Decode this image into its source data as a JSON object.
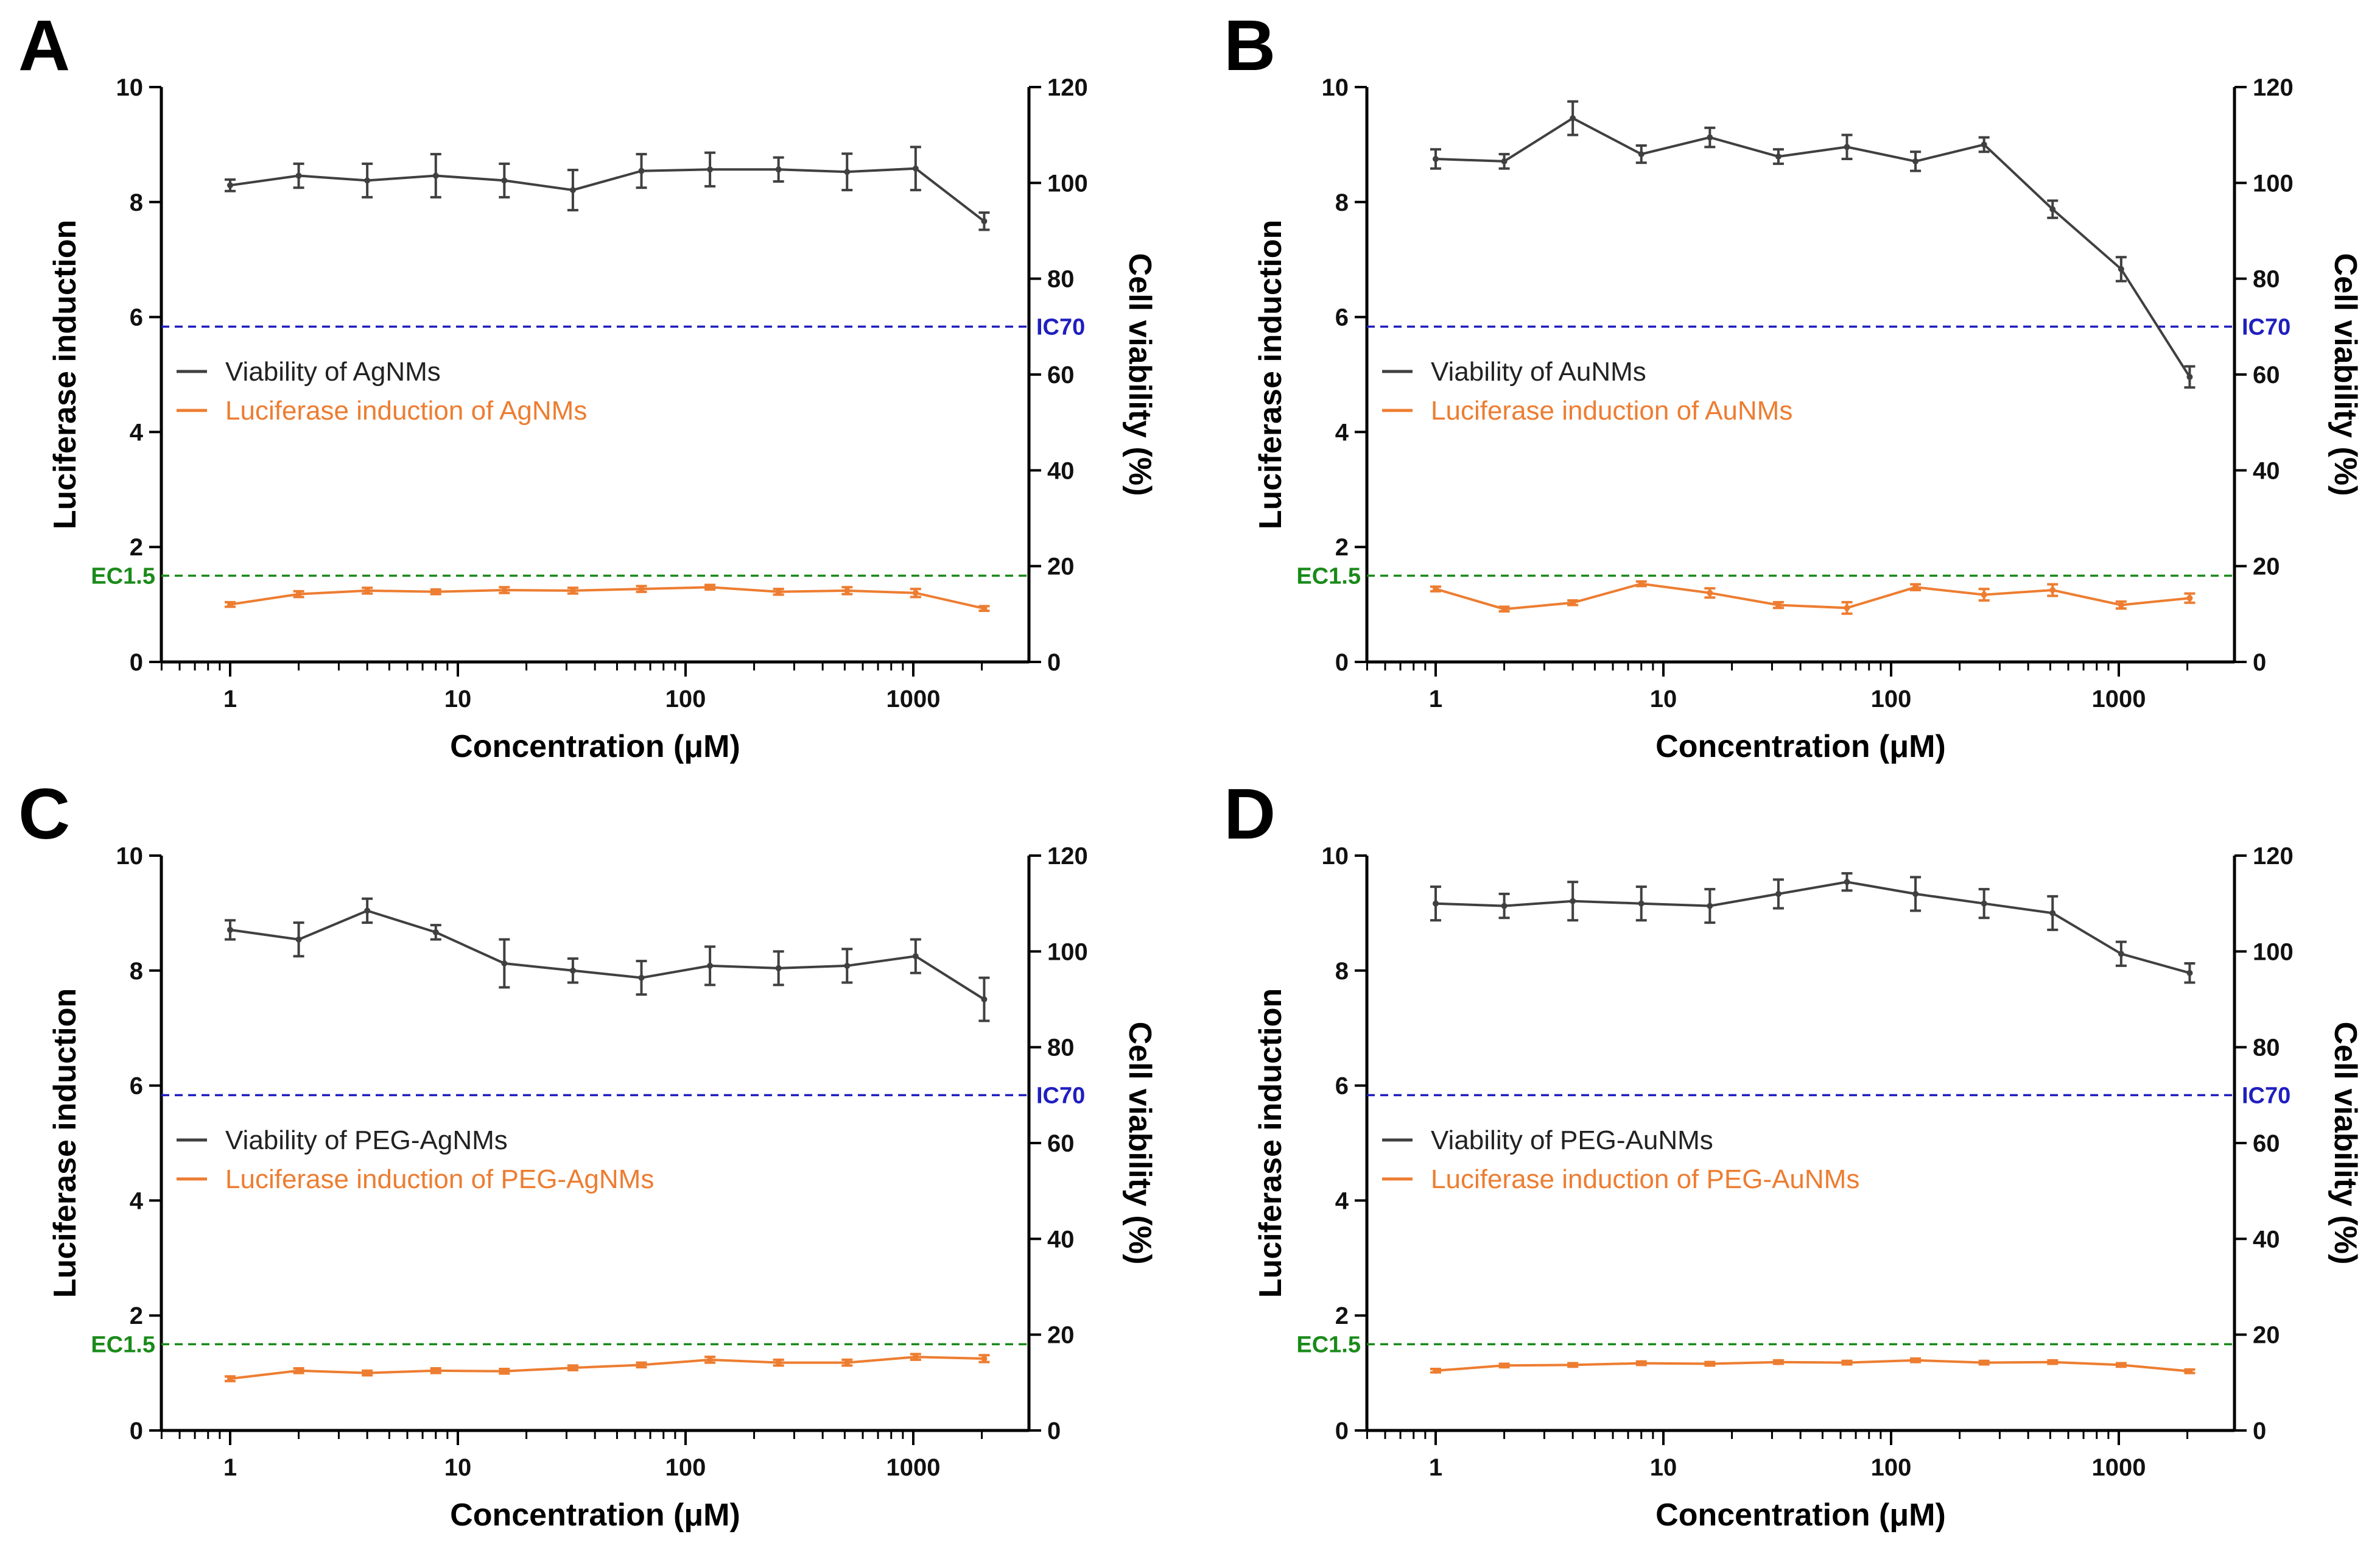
{
  "chart_data": [
    {
      "panel": "A",
      "type": "line",
      "x": [
        1,
        2,
        4,
        8,
        16,
        32,
        64,
        128,
        256,
        512,
        1024,
        2048
      ],
      "xlabel": "Concentration (μM)",
      "xscale": "log",
      "xticks": [
        "1",
        "10",
        "100",
        "1000"
      ],
      "ylabel_left": "Luciferase induction",
      "ylim_left": [
        0,
        10
      ],
      "yticks_left": [
        "0",
        "2",
        "4",
        "6",
        "8",
        "10"
      ],
      "ylabel_right": "Cell viability (%)",
      "ylim_right": [
        0,
        120
      ],
      "yticks_right": [
        "0",
        "20",
        "40",
        "60",
        "80",
        "100",
        "120"
      ],
      "series": [
        {
          "name": "Viability of AgNMs",
          "axis": "right",
          "color": "#404040",
          "values": [
            99.5,
            101.5,
            100.5,
            101.5,
            100.5,
            98.5,
            102.5,
            102.8,
            102.8,
            102.3,
            103,
            92
          ],
          "errors": [
            1.2,
            2.5,
            3.5,
            4.5,
            3.5,
            4.2,
            3.5,
            3.5,
            2.5,
            3.8,
            4.5,
            1.8
          ]
        },
        {
          "name": "Luciferase induction of AgNMs",
          "axis": "left",
          "color": "#ED7D31",
          "values": [
            1.0,
            1.18,
            1.24,
            1.22,
            1.25,
            1.24,
            1.27,
            1.3,
            1.22,
            1.24,
            1.2,
            0.93
          ],
          "errors": [
            0.04,
            0.05,
            0.05,
            0.04,
            0.05,
            0.05,
            0.05,
            0.04,
            0.05,
            0.06,
            0.07,
            0.04
          ]
        }
      ],
      "ref_lines": [
        {
          "label": "IC70",
          "axis": "right",
          "value": 70,
          "color": "#1f1fbf"
        },
        {
          "label": "EC1.5",
          "axis": "left",
          "value": 1.5,
          "color": "#1a8a1a"
        }
      ]
    },
    {
      "panel": "B",
      "type": "line",
      "x": [
        1,
        2,
        4,
        8,
        16,
        32,
        64,
        128,
        256,
        512,
        1024,
        2048
      ],
      "xlabel": "Concentration (μM)",
      "xscale": "log",
      "xticks": [
        "1",
        "10",
        "100",
        "1000"
      ],
      "ylabel_left": "Luciferase induction",
      "ylim_left": [
        0,
        10
      ],
      "yticks_left": [
        "0",
        "2",
        "4",
        "6",
        "8",
        "10"
      ],
      "ylabel_right": "Cell viability (%)",
      "ylim_right": [
        0,
        120
      ],
      "yticks_right": [
        "0",
        "20",
        "40",
        "60",
        "80",
        "100",
        "120"
      ],
      "series": [
        {
          "name": "Viability of AuNMs",
          "axis": "right",
          "color": "#404040",
          "values": [
            105,
            104.5,
            113.5,
            106,
            109.5,
            105.5,
            107.5,
            104.5,
            108,
            94.5,
            82,
            59.5
          ],
          "errors": [
            2.0,
            1.5,
            3.5,
            1.8,
            2.0,
            1.5,
            2.5,
            2.0,
            1.5,
            1.8,
            2.5,
            2.2
          ]
        },
        {
          "name": "Luciferase induction of AuNMs",
          "axis": "left",
          "color": "#ED7D31",
          "values": [
            1.27,
            0.92,
            1.03,
            1.36,
            1.2,
            0.99,
            0.94,
            1.3,
            1.17,
            1.25,
            0.99,
            1.11
          ],
          "errors": [
            0.04,
            0.04,
            0.04,
            0.04,
            0.08,
            0.05,
            0.1,
            0.05,
            0.1,
            0.1,
            0.06,
            0.08
          ]
        }
      ],
      "ref_lines": [
        {
          "label": "IC70",
          "axis": "right",
          "value": 70,
          "color": "#1f1fbf"
        },
        {
          "label": "EC1.5",
          "axis": "left",
          "value": 1.5,
          "color": "#1a8a1a"
        }
      ]
    },
    {
      "panel": "C",
      "type": "line",
      "x": [
        1,
        2,
        4,
        8,
        16,
        32,
        64,
        128,
        256,
        512,
        1024,
        2048
      ],
      "xlabel": "Concentration (μM)",
      "xscale": "log",
      "xticks": [
        "1",
        "10",
        "100",
        "1000"
      ],
      "ylabel_left": "Luciferase induction",
      "ylim_left": [
        0,
        10
      ],
      "yticks_left": [
        "0",
        "2",
        "4",
        "6",
        "8",
        "10"
      ],
      "ylabel_right": "Cell viability (%)",
      "ylim_right": [
        0,
        120
      ],
      "yticks_right": [
        "0",
        "20",
        "40",
        "60",
        "80",
        "100",
        "120"
      ],
      "series": [
        {
          "name": "Viability of PEG-AgNMs",
          "axis": "right",
          "color": "#404040",
          "values": [
            104.5,
            102.5,
            108.5,
            104,
            97.5,
            96,
            94.5,
            97,
            96.5,
            97,
            99,
            90
          ],
          "errors": [
            2.0,
            3.5,
            2.5,
            1.5,
            5.0,
            2.5,
            3.5,
            4.0,
            3.5,
            3.5,
            3.5,
            4.5
          ]
        },
        {
          "name": "Luciferase induction of PEG-AgNMs",
          "axis": "left",
          "color": "#ED7D31",
          "values": [
            0.9,
            1.04,
            1.0,
            1.04,
            1.03,
            1.09,
            1.14,
            1.23,
            1.18,
            1.18,
            1.28,
            1.25
          ],
          "errors": [
            0.04,
            0.04,
            0.04,
            0.04,
            0.04,
            0.04,
            0.04,
            0.05,
            0.05,
            0.05,
            0.05,
            0.06
          ]
        }
      ],
      "ref_lines": [
        {
          "label": "IC70",
          "axis": "right",
          "value": 70,
          "color": "#1f1fbf"
        },
        {
          "label": "EC1.5",
          "axis": "left",
          "value": 1.5,
          "color": "#1a8a1a"
        }
      ]
    },
    {
      "panel": "D",
      "type": "line",
      "x": [
        1,
        2,
        4,
        8,
        16,
        32,
        64,
        128,
        256,
        512,
        1024,
        2048
      ],
      "xlabel": "Concentration (μM)",
      "xscale": "log",
      "xticks": [
        "1",
        "10",
        "100",
        "1000"
      ],
      "ylabel_left": "Luciferase induction",
      "ylim_left": [
        0,
        10
      ],
      "yticks_left": [
        "0",
        "2",
        "4",
        "6",
        "8",
        "10"
      ],
      "ylabel_right": "Cell viability (%)",
      "ylim_right": [
        0,
        120
      ],
      "yticks_right": [
        "0",
        "20",
        "40",
        "60",
        "80",
        "100",
        "120"
      ],
      "series": [
        {
          "name": "Viability of PEG-AuNMs",
          "axis": "right",
          "color": "#404040",
          "values": [
            110,
            109.5,
            110.5,
            110,
            109.5,
            112,
            114.5,
            112,
            110,
            108,
            99.5,
            95.5
          ],
          "errors": [
            3.5,
            2.5,
            4.0,
            3.5,
            3.5,
            3.0,
            1.8,
            3.5,
            3.0,
            3.5,
            2.5,
            2.0
          ]
        },
        {
          "name": "Luciferase induction of PEG-AuNMs",
          "axis": "left",
          "color": "#ED7D31",
          "values": [
            1.04,
            1.13,
            1.14,
            1.17,
            1.16,
            1.19,
            1.18,
            1.22,
            1.18,
            1.19,
            1.14,
            1.03
          ],
          "errors": [
            0.03,
            0.03,
            0.03,
            0.03,
            0.03,
            0.03,
            0.03,
            0.03,
            0.03,
            0.03,
            0.03,
            0.03
          ]
        }
      ],
      "ref_lines": [
        {
          "label": "IC70",
          "axis": "right",
          "value": 70,
          "color": "#1f1fbf"
        },
        {
          "label": "EC1.5",
          "axis": "left",
          "value": 1.5,
          "color": "#1a8a1a"
        }
      ]
    }
  ]
}
